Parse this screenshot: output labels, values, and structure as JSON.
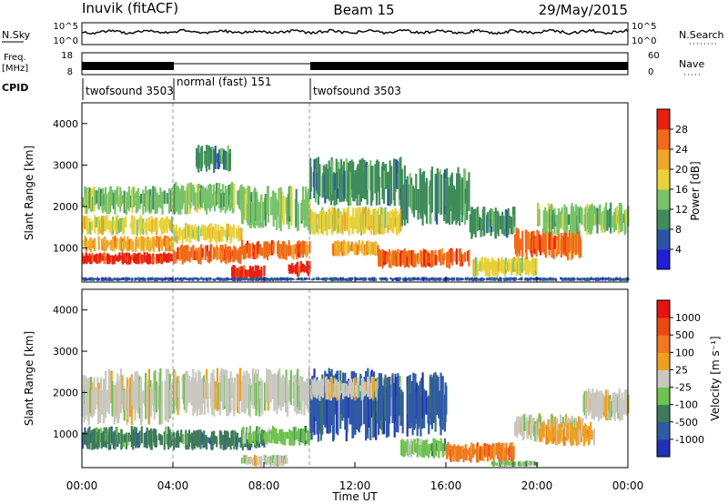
{
  "header": {
    "station": "Inuvik (fitACF)",
    "beam": "Beam 15",
    "date": "29/May/2015"
  },
  "colors": {
    "power_scale": [
      "#1f1fd6",
      "#2a52a8",
      "#3f8c5a",
      "#78c36a",
      "#e8d23a",
      "#f0a62a",
      "#f06a1a",
      "#e82010"
    ],
    "velocity_scale": [
      "#2230b8",
      "#2f5aa6",
      "#3f7a5a",
      "#6ec34e",
      "#c8c8c0",
      "#f0a020",
      "#f07820",
      "#e84a10",
      "#e81010"
    ]
  },
  "panels": {
    "nsky": {
      "left_label": "N.Sky",
      "left_ticks": [
        "10^5",
        "10^0"
      ],
      "right_label": "N.Search",
      "right_ticks": [
        "10^5",
        "10^0"
      ]
    },
    "freq": {
      "left_label_1": "Freq.",
      "left_label_2": "[MHz]",
      "left_ticks": [
        "18",
        "8"
      ],
      "right_label": "Nave",
      "right_ticks": [
        "60",
        "0"
      ]
    },
    "cpid": {
      "label": "CPID",
      "segments": [
        {
          "start": 0,
          "end": 4,
          "text": "twofsound 3503"
        },
        {
          "start": 4,
          "end": 10,
          "text": "normal (fast) 151"
        },
        {
          "start": 10,
          "end": 24,
          "text": "twofsound 3503"
        }
      ]
    }
  },
  "colorbars": {
    "power": {
      "title": "Power [dB]",
      "ticks": [
        "28",
        "24",
        "20",
        "16",
        "12",
        "8",
        "4"
      ]
    },
    "velocity": {
      "title": "Velocity [m s⁻¹]",
      "ticks": [
        "1000",
        "500",
        "100",
        "25",
        "-25",
        "-100",
        "-500",
        "-1000"
      ]
    }
  },
  "chart_data": [
    {
      "type": "heatmap",
      "name": "power",
      "ylabel": "Slant Range [km]",
      "xlabel": "",
      "xlim": [
        0,
        24
      ],
      "ylim": [
        180,
        4500
      ],
      "yticks": [
        "1000",
        "2000",
        "3000",
        "4000"
      ],
      "xticks": [
        "00:00",
        "04:00",
        "08:00",
        "12:00",
        "16:00",
        "20:00",
        "00:00"
      ],
      "bands": [
        {
          "t0": 0,
          "t1": 4,
          "r0": 600,
          "r1": 900,
          "c": 7
        },
        {
          "t0": 0,
          "t1": 4,
          "r0": 900,
          "r1": 1300,
          "c": 5
        },
        {
          "t0": 0,
          "t1": 4,
          "r0": 1300,
          "r1": 1800,
          "c": 4
        },
        {
          "t0": 0,
          "t1": 4,
          "r0": 1800,
          "r1": 2500,
          "c": 3
        },
        {
          "t0": 4,
          "t1": 7,
          "r0": 600,
          "r1": 1100,
          "c": 6
        },
        {
          "t0": 4,
          "t1": 7,
          "r0": 1100,
          "r1": 1600,
          "c": 4
        },
        {
          "t0": 4,
          "t1": 7,
          "r0": 1800,
          "r1": 2600,
          "c": 3
        },
        {
          "t0": 5,
          "t1": 6.5,
          "r0": 2800,
          "r1": 3500,
          "c": 2
        },
        {
          "t0": 6.5,
          "t1": 8,
          "r0": 200,
          "r1": 600,
          "c": 7
        },
        {
          "t0": 7,
          "t1": 10,
          "r0": 700,
          "r1": 1200,
          "c": 6
        },
        {
          "t0": 7,
          "t1": 10,
          "r0": 1400,
          "r1": 2500,
          "c": 3
        },
        {
          "t0": 9,
          "t1": 10,
          "r0": 300,
          "r1": 700,
          "c": 7
        },
        {
          "t0": 10,
          "t1": 14,
          "r0": 1300,
          "r1": 2000,
          "c": 4
        },
        {
          "t0": 10,
          "t1": 14,
          "r0": 2000,
          "r1": 3200,
          "c": 2
        },
        {
          "t0": 11,
          "t1": 13,
          "r0": 800,
          "r1": 1200,
          "c": 5
        },
        {
          "t0": 13,
          "t1": 17,
          "r0": 500,
          "r1": 1000,
          "c": 6
        },
        {
          "t0": 14,
          "t1": 17,
          "r0": 1500,
          "r1": 3000,
          "c": 2
        },
        {
          "t0": 17,
          "t1": 20,
          "r0": 300,
          "r1": 800,
          "c": 4
        },
        {
          "t0": 17,
          "t1": 19,
          "r0": 1200,
          "r1": 2000,
          "c": 2
        },
        {
          "t0": 19,
          "t1": 22,
          "r0": 700,
          "r1": 1500,
          "c": 6
        },
        {
          "t0": 20,
          "t1": 24,
          "r0": 1300,
          "r1": 2100,
          "c": 3
        },
        {
          "t0": 0,
          "t1": 24,
          "r0": 200,
          "r1": 300,
          "c": 1
        }
      ]
    },
    {
      "type": "heatmap",
      "name": "velocity",
      "ylabel": "Slant Range [km]",
      "xlabel": "Time UT",
      "xlim": [
        0,
        24
      ],
      "ylim": [
        180,
        4500
      ],
      "yticks": [
        "1000",
        "2000",
        "3000",
        "4000"
      ],
      "xticks": [
        "00:00",
        "04:00",
        "08:00",
        "12:00",
        "16:00",
        "20:00",
        "00:00"
      ],
      "bands": [
        {
          "t0": 0,
          "t1": 4,
          "r0": 600,
          "r1": 1200,
          "c": 2
        },
        {
          "t0": 0,
          "t1": 4,
          "r0": 1200,
          "r1": 2600,
          "c": 4
        },
        {
          "t0": 4,
          "t1": 8,
          "r0": 600,
          "r1": 1100,
          "c": 2
        },
        {
          "t0": 4,
          "t1": 10,
          "r0": 1400,
          "r1": 2600,
          "c": 4
        },
        {
          "t0": 7,
          "t1": 10,
          "r0": 700,
          "r1": 1200,
          "c": 3
        },
        {
          "t0": 7,
          "t1": 9,
          "r0": 200,
          "r1": 500,
          "c": 4
        },
        {
          "t0": 10,
          "t1": 13,
          "r0": 800,
          "r1": 2600,
          "c": 1
        },
        {
          "t0": 10,
          "t1": 14,
          "r0": 1800,
          "r1": 2400,
          "c": 4
        },
        {
          "t0": 13,
          "t1": 16,
          "r0": 900,
          "r1": 2500,
          "c": 1
        },
        {
          "t0": 14,
          "t1": 16,
          "r0": 400,
          "r1": 900,
          "c": 3
        },
        {
          "t0": 16,
          "t1": 19,
          "r0": 300,
          "r1": 800,
          "c": 6
        },
        {
          "t0": 18,
          "t1": 20,
          "r0": 200,
          "r1": 350,
          "c": 3
        },
        {
          "t0": 19,
          "t1": 22,
          "r0": 800,
          "r1": 1500,
          "c": 4
        },
        {
          "t0": 20,
          "t1": 22.5,
          "r0": 700,
          "r1": 1300,
          "c": 5
        },
        {
          "t0": 22,
          "t1": 24,
          "r0": 1300,
          "r1": 2100,
          "c": 4
        }
      ]
    }
  ]
}
